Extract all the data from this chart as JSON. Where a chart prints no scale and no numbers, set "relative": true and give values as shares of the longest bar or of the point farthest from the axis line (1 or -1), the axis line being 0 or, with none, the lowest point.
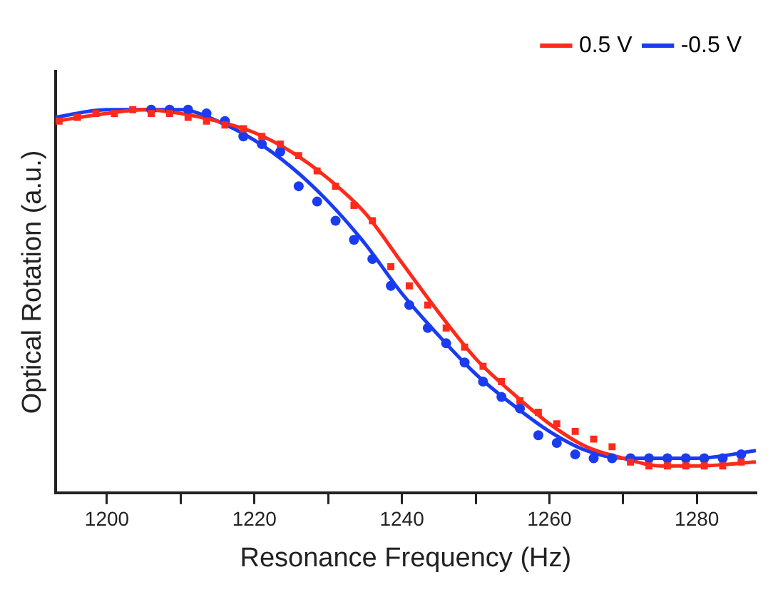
{
  "chart_data": {
    "type": "scatter",
    "xlabel": "Resonance Frequency (Hz)",
    "ylabel": "Optical Rotation (a.u.)",
    "relative": true,
    "xlim": [
      1193,
      1288
    ],
    "xticks": [
      1200,
      {
        "value": 1210,
        "label": null
      },
      1220,
      {
        "value": 1230,
        "label": null
      },
      1240,
      {
        "value": 1250,
        "label": null
      },
      1260,
      {
        "value": 1270,
        "label": null
      },
      1280
    ],
    "grid": false,
    "legend": "top right",
    "series": [
      {
        "type": "line",
        "name": "0.5 V",
        "color": "#ff2a1a",
        "marker": "none",
        "line_style": "solid",
        "x": [
          1193,
          1200,
          1205,
          1210,
          1215,
          1220,
          1225,
          1230,
          1235,
          1240,
          1245,
          1250,
          1255,
          1260,
          1265,
          1270,
          1275,
          1280,
          1288
        ],
        "values": [
          0.97,
          0.99,
          1.0,
          0.99,
          0.97,
          0.94,
          0.89,
          0.82,
          0.73,
          0.6,
          0.47,
          0.35,
          0.26,
          0.18,
          0.12,
          0.09,
          0.07,
          0.07,
          0.08
        ]
      },
      {
        "type": "line",
        "name": "-0.5 V",
        "color": "#1a3cf0",
        "marker": "none",
        "line_style": "solid",
        "x": [
          1193,
          1200,
          1205,
          1210,
          1215,
          1220,
          1225,
          1230,
          1235,
          1240,
          1245,
          1250,
          1255,
          1260,
          1265,
          1270,
          1275,
          1280,
          1288
        ],
        "values": [
          0.98,
          1.0,
          1.0,
          1.0,
          0.97,
          0.92,
          0.85,
          0.76,
          0.65,
          0.52,
          0.41,
          0.31,
          0.23,
          0.16,
          0.11,
          0.09,
          0.09,
          0.09,
          0.11
        ]
      },
      {
        "type": "scatter",
        "color": "#ff2a1a",
        "marker": "square",
        "x": [
          1193.5,
          1196,
          1198.5,
          1201,
          1203.5,
          1206,
          1208.5,
          1211,
          1213.5,
          1216,
          1218.5,
          1221,
          1223.5,
          1226,
          1228.5,
          1231,
          1233.5,
          1236,
          1238.5,
          1241,
          1243.5,
          1246,
          1248.5,
          1251,
          1253.5,
          1256,
          1258.5,
          1261,
          1263.5,
          1266,
          1268.5,
          1271,
          1273.5,
          1276,
          1278.5,
          1281,
          1283.5,
          1286
        ],
        "values": [
          0.97,
          0.98,
          0.99,
          0.99,
          1.0,
          0.99,
          0.99,
          0.98,
          0.97,
          0.96,
          0.95,
          0.93,
          0.91,
          0.88,
          0.84,
          0.8,
          0.75,
          0.71,
          0.59,
          0.54,
          0.49,
          0.43,
          0.38,
          0.33,
          0.29,
          0.24,
          0.21,
          0.18,
          0.16,
          0.14,
          0.12,
          0.08,
          0.07,
          0.07,
          0.07,
          0.07,
          0.07,
          0.08
        ]
      },
      {
        "type": "scatter",
        "color": "#1a3cf0",
        "marker": "circle",
        "x": [
          1206,
          1208.5,
          1211,
          1213.5,
          1216,
          1218.5,
          1221,
          1223.5,
          1226,
          1228.5,
          1231,
          1233.5,
          1236,
          1238.5,
          1241,
          1243.5,
          1246,
          1248.5,
          1251,
          1253.5,
          1256,
          1258.5,
          1261,
          1263.5,
          1266,
          1268.5,
          1271,
          1273.5,
          1276,
          1278.5,
          1281,
          1283.5,
          1286
        ],
        "values": [
          1.0,
          1.0,
          1.0,
          0.99,
          0.97,
          0.93,
          0.91,
          0.89,
          0.8,
          0.76,
          0.71,
          0.66,
          0.61,
          0.54,
          0.49,
          0.43,
          0.39,
          0.34,
          0.29,
          0.25,
          0.22,
          0.15,
          0.13,
          0.1,
          0.09,
          0.09,
          0.09,
          0.09,
          0.09,
          0.09,
          0.09,
          0.09,
          0.1
        ]
      }
    ]
  }
}
